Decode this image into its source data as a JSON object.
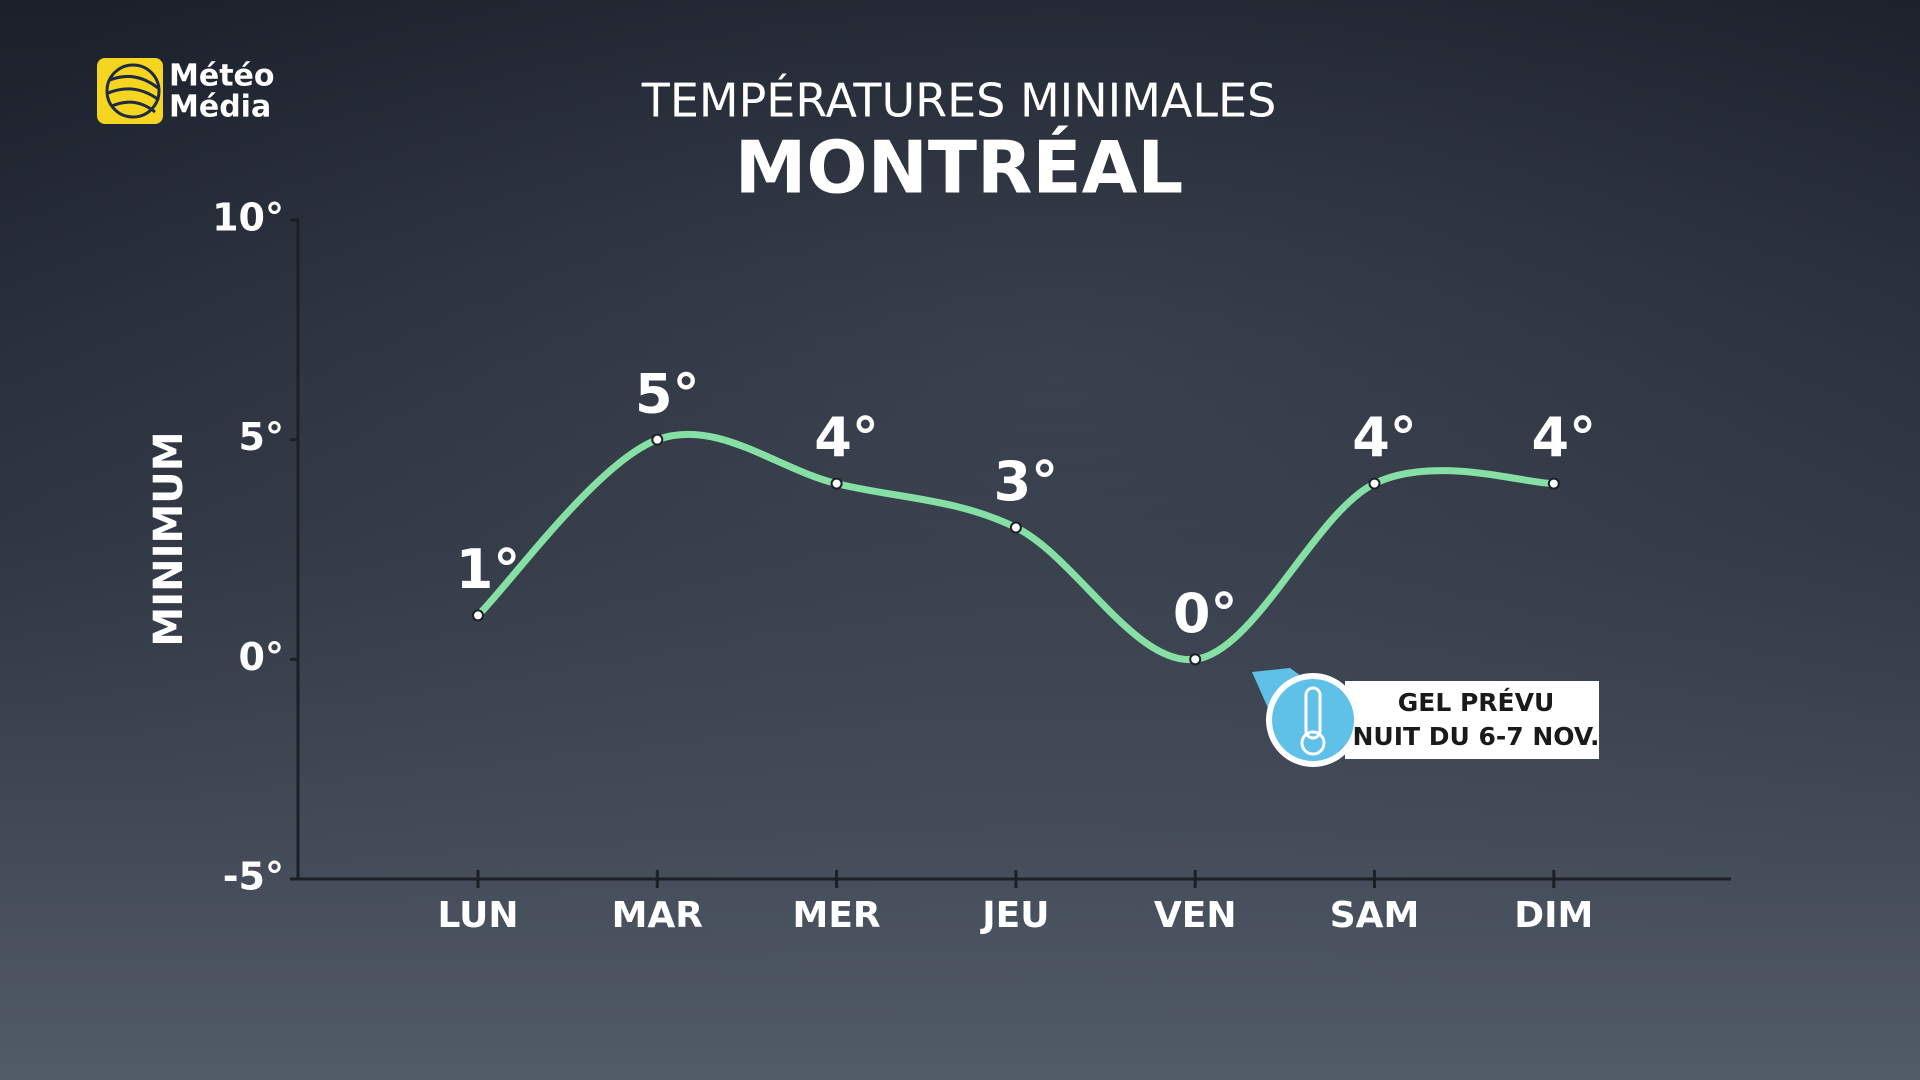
{
  "logo": {
    "line1": "Météo",
    "line2": "Média"
  },
  "chart_data": {
    "type": "line",
    "title": "TEMPÉRATURES MINIMALES",
    "subtitle": "MONTRÉAL",
    "y_label": "MINIMUM",
    "categories": [
      "LUN",
      "MAR",
      "MER",
      "JEU",
      "VEN",
      "SAM",
      "DIM"
    ],
    "values": [
      1,
      5,
      4,
      3,
      0,
      4,
      4
    ],
    "value_labels": [
      "1°",
      "5°",
      "4°",
      "3°",
      "0°",
      "4°",
      "4°"
    ],
    "color": "#86e0a6",
    "ylim": [
      -5,
      10
    ],
    "yticks": [
      {
        "value": -5,
        "label": "-5°"
      },
      {
        "value": 0,
        "label": "0°"
      },
      {
        "value": 5,
        "label": "5°"
      },
      {
        "value": 10,
        "label": "10°"
      }
    ],
    "grid": false,
    "annotation": {
      "line1": "GEL PRÉVU",
      "line2": "NUIT DU 6-7 NOV."
    }
  }
}
